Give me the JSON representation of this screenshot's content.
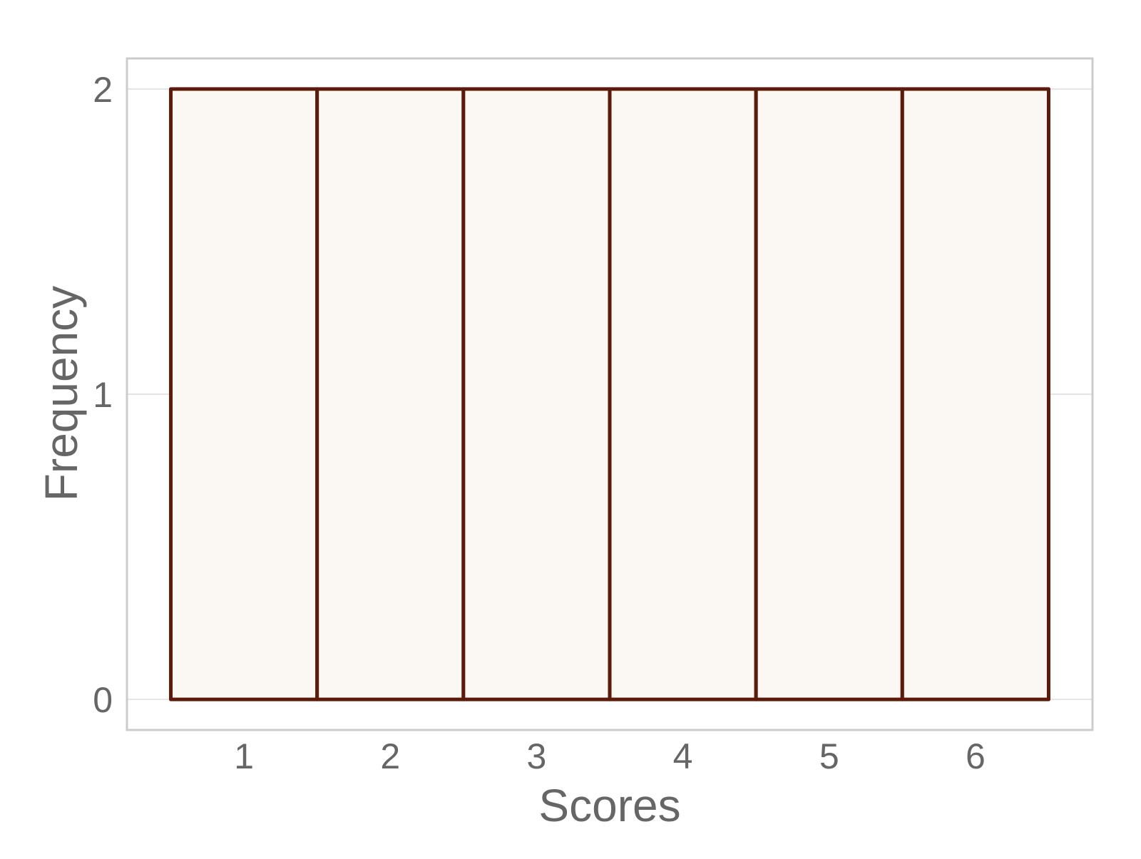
{
  "chart_data": {
    "type": "bar",
    "categories": [
      "1",
      "2",
      "3",
      "4",
      "5",
      "6"
    ],
    "values": [
      2,
      2,
      2,
      2,
      2,
      2
    ],
    "xlabel": "Scores",
    "ylabel": "Frequency",
    "x_ticks": [
      "1",
      "2",
      "3",
      "4",
      "5",
      "6"
    ],
    "y_ticks": [
      0,
      1,
      2
    ],
    "ylim": [
      -0.1,
      2.1
    ],
    "xlim": [
      0.2,
      6.8
    ],
    "grid": "horizontal",
    "legend": "none",
    "colors": {
      "bar_fill": "#fbf8f3",
      "bar_edge": "#5c1a0b",
      "grid": "#e4e4e4",
      "frame": "#cccccc",
      "text": "#666666"
    }
  }
}
